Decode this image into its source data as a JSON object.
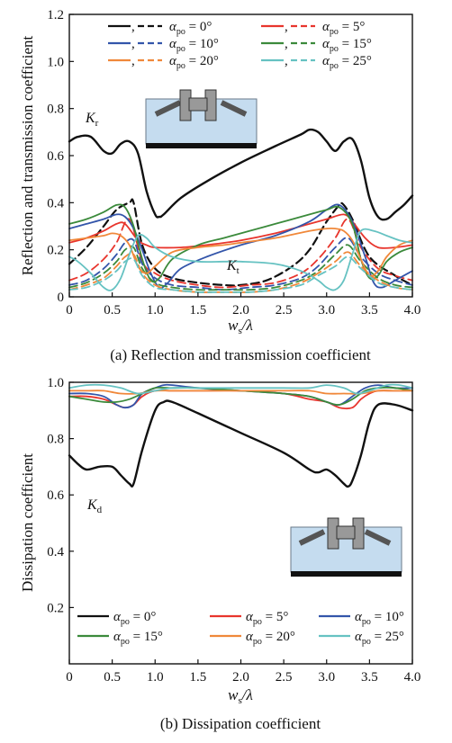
{
  "chart_data": [
    {
      "type": "line",
      "caption": "(a) Reflection and transmission coefficient",
      "xlabel": "w_s/λ",
      "xlabel_parts": {
        "w": "w",
        "s": "s",
        "rest": "/λ"
      },
      "ylabel": "Reflection and transmission coefficient",
      "xlim": [
        0,
        4.0
      ],
      "ylim": [
        0,
        1.2
      ],
      "xticks": [
        "0",
        "0.5",
        "1.0",
        "1.5",
        "2.0",
        "2.5",
        "3.0",
        "3.5",
        "4.0"
      ],
      "yticks": [
        "0",
        "0.2",
        "0.4",
        "0.6",
        "0.8",
        "1.0",
        "1.2"
      ],
      "grid": false,
      "legend_position": "top",
      "annotations": {
        "kr": {
          "main": "K",
          "sub": "r"
        },
        "kt": {
          "main": "K",
          "sub": "t"
        }
      },
      "legend": [
        {
          "sym": "α",
          "sub": "po",
          "val": " = 0°",
          "color": "#111111"
        },
        {
          "sym": "α",
          "sub": "po",
          "val": " = 5°",
          "color": "#e8352d"
        },
        {
          "sym": "α",
          "sub": "po",
          "val": " = 10°",
          "color": "#3355aa"
        },
        {
          "sym": "α",
          "sub": "po",
          "val": " = 15°",
          "color": "#3b8a3b"
        },
        {
          "sym": "α",
          "sub": "po",
          "val": " = 20°",
          "color": "#f0883a"
        },
        {
          "sym": "α",
          "sub": "po",
          "val": " = 25°",
          "color": "#66c2c2"
        }
      ],
      "legend_sep": ",",
      "series": [
        {
          "color": "#111111",
          "dash": false,
          "width": 2.4,
          "x": [
            0,
            0.1,
            0.25,
            0.4,
            0.5,
            0.6,
            0.7,
            0.8,
            0.9,
            1.0,
            1.05,
            1.1,
            1.3,
            1.6,
            2.0,
            2.4,
            2.7,
            2.8,
            2.9,
            3.0,
            3.1,
            3.2,
            3.3,
            3.4,
            3.5,
            3.6,
            3.7,
            3.8,
            3.9,
            4.0
          ],
          "y": [
            0.66,
            0.68,
            0.68,
            0.62,
            0.61,
            0.65,
            0.66,
            0.61,
            0.45,
            0.35,
            0.34,
            0.35,
            0.42,
            0.49,
            0.57,
            0.64,
            0.69,
            0.71,
            0.7,
            0.66,
            0.62,
            0.66,
            0.67,
            0.58,
            0.42,
            0.34,
            0.33,
            0.36,
            0.39,
            0.43
          ]
        },
        {
          "color": "#111111",
          "dash": true,
          "width": 2.2,
          "x": [
            0,
            0.2,
            0.4,
            0.55,
            0.7,
            0.75,
            0.85,
            1.0,
            1.2,
            1.5,
            1.8,
            2.0,
            2.3,
            2.6,
            2.8,
            3.0,
            3.15,
            3.2,
            3.3,
            3.5,
            3.8,
            4.0
          ],
          "y": [
            0.14,
            0.21,
            0.3,
            0.37,
            0.4,
            0.4,
            0.22,
            0.12,
            0.08,
            0.06,
            0.05,
            0.05,
            0.07,
            0.13,
            0.2,
            0.32,
            0.39,
            0.39,
            0.33,
            0.17,
            0.09,
            0.05
          ]
        },
        {
          "color": "#e8352d",
          "dash": false,
          "width": 1.8,
          "x": [
            0,
            0.2,
            0.4,
            0.55,
            0.65,
            0.8,
            0.9,
            1.0,
            1.3,
            1.6,
            2.0,
            2.4,
            2.8,
            3.0,
            3.2,
            3.3,
            3.45,
            3.6,
            3.8,
            4.0
          ],
          "y": [
            0.23,
            0.25,
            0.28,
            0.31,
            0.31,
            0.24,
            0.22,
            0.21,
            0.21,
            0.22,
            0.24,
            0.27,
            0.31,
            0.33,
            0.35,
            0.32,
            0.25,
            0.21,
            0.21,
            0.22
          ]
        },
        {
          "color": "#e8352d",
          "dash": true,
          "width": 1.8,
          "x": [
            0,
            0.2,
            0.4,
            0.55,
            0.7,
            0.85,
            1.0,
            1.2,
            1.5,
            1.8,
            2.1,
            2.4,
            2.7,
            2.9,
            3.1,
            3.25,
            3.4,
            3.6,
            3.8,
            4.0
          ],
          "y": [
            0.07,
            0.1,
            0.16,
            0.23,
            0.33,
            0.15,
            0.1,
            0.07,
            0.05,
            0.04,
            0.05,
            0.06,
            0.1,
            0.16,
            0.25,
            0.33,
            0.21,
            0.12,
            0.09,
            0.07
          ]
        },
        {
          "color": "#3355aa",
          "dash": false,
          "width": 1.8,
          "x": [
            0,
            0.2,
            0.4,
            0.55,
            0.65,
            0.75,
            0.85,
            0.95,
            1.05,
            1.15,
            1.3,
            1.6,
            2.0,
            2.4,
            2.8,
            3.0,
            3.15,
            3.3,
            3.45,
            3.55,
            3.65,
            3.8,
            4.0
          ],
          "y": [
            0.29,
            0.31,
            0.33,
            0.35,
            0.34,
            0.29,
            0.2,
            0.1,
            0.04,
            0.06,
            0.12,
            0.17,
            0.22,
            0.26,
            0.32,
            0.37,
            0.39,
            0.32,
            0.17,
            0.06,
            0.04,
            0.07,
            0.11
          ]
        },
        {
          "color": "#3355aa",
          "dash": true,
          "width": 1.8,
          "x": [
            0,
            0.2,
            0.4,
            0.55,
            0.65,
            0.75,
            0.85,
            1.0,
            1.2,
            1.5,
            1.8,
            2.1,
            2.4,
            2.7,
            2.9,
            3.1,
            3.25,
            3.4,
            3.6,
            3.8,
            4.0
          ],
          "y": [
            0.05,
            0.07,
            0.12,
            0.18,
            0.23,
            0.24,
            0.14,
            0.08,
            0.05,
            0.04,
            0.03,
            0.04,
            0.05,
            0.08,
            0.13,
            0.21,
            0.25,
            0.17,
            0.1,
            0.07,
            0.05
          ]
        },
        {
          "color": "#3b8a3b",
          "dash": false,
          "width": 1.8,
          "x": [
            0,
            0.2,
            0.4,
            0.55,
            0.65,
            0.75,
            0.85,
            0.95,
            1.05,
            1.2,
            1.5,
            1.8,
            2.0,
            2.4,
            2.8,
            3.0,
            3.15,
            3.3,
            3.4,
            3.5,
            3.6,
            3.7,
            3.85,
            4.0
          ],
          "y": [
            0.31,
            0.33,
            0.36,
            0.39,
            0.38,
            0.3,
            0.16,
            0.07,
            0.08,
            0.16,
            0.22,
            0.25,
            0.27,
            0.31,
            0.35,
            0.37,
            0.38,
            0.31,
            0.16,
            0.08,
            0.09,
            0.15,
            0.19,
            0.21
          ]
        },
        {
          "color": "#3b8a3b",
          "dash": true,
          "width": 1.8,
          "x": [
            0,
            0.2,
            0.4,
            0.55,
            0.65,
            0.75,
            0.85,
            1.0,
            1.2,
            1.5,
            1.8,
            2.1,
            2.4,
            2.7,
            2.9,
            3.1,
            3.25,
            3.4,
            3.6,
            3.8,
            4.0
          ],
          "y": [
            0.04,
            0.06,
            0.1,
            0.15,
            0.2,
            0.21,
            0.12,
            0.06,
            0.04,
            0.03,
            0.03,
            0.03,
            0.04,
            0.07,
            0.11,
            0.18,
            0.22,
            0.15,
            0.08,
            0.05,
            0.04
          ]
        },
        {
          "color": "#f0883a",
          "dash": false,
          "width": 1.8,
          "x": [
            0,
            0.2,
            0.4,
            0.5,
            0.6,
            0.7,
            0.8,
            0.9,
            1.0,
            1.2,
            1.5,
            1.8,
            2.0,
            2.4,
            2.8,
            3.0,
            3.1,
            3.2,
            3.3,
            3.4,
            3.5,
            3.6,
            3.7,
            3.85,
            4.0
          ],
          "y": [
            0.24,
            0.25,
            0.26,
            0.27,
            0.26,
            0.22,
            0.13,
            0.1,
            0.13,
            0.19,
            0.21,
            0.22,
            0.23,
            0.25,
            0.28,
            0.29,
            0.29,
            0.28,
            0.24,
            0.16,
            0.09,
            0.11,
            0.17,
            0.22,
            0.24
          ]
        },
        {
          "color": "#f0883a",
          "dash": true,
          "width": 1.8,
          "x": [
            0,
            0.2,
            0.4,
            0.55,
            0.65,
            0.75,
            0.85,
            1.0,
            1.2,
            1.5,
            1.8,
            2.1,
            2.4,
            2.7,
            2.9,
            3.1,
            3.25,
            3.4,
            3.6,
            3.8,
            4.0
          ],
          "y": [
            0.03,
            0.05,
            0.08,
            0.13,
            0.17,
            0.18,
            0.1,
            0.05,
            0.03,
            0.02,
            0.02,
            0.02,
            0.03,
            0.06,
            0.1,
            0.15,
            0.19,
            0.13,
            0.07,
            0.04,
            0.03
          ]
        },
        {
          "color": "#66c2c2",
          "dash": false,
          "width": 1.8,
          "x": [
            0,
            0.1,
            0.25,
            0.4,
            0.5,
            0.6,
            0.7,
            0.8,
            0.9,
            1.0,
            1.2,
            1.5,
            1.8,
            2.0,
            2.4,
            2.7,
            2.9,
            3.0,
            3.1,
            3.2,
            3.3,
            3.4,
            3.55,
            3.7,
            3.85,
            4.0
          ],
          "y": [
            0.17,
            0.15,
            0.1,
            0.04,
            0.03,
            0.08,
            0.18,
            0.26,
            0.25,
            0.21,
            0.17,
            0.15,
            0.15,
            0.15,
            0.14,
            0.11,
            0.07,
            0.04,
            0.03,
            0.07,
            0.18,
            0.28,
            0.28,
            0.26,
            0.24,
            0.23
          ]
        },
        {
          "color": "#66c2c2",
          "dash": true,
          "width": 1.8,
          "x": [
            0,
            0.2,
            0.4,
            0.55,
            0.65,
            0.75,
            0.85,
            1.0,
            1.2,
            1.5,
            1.8,
            2.1,
            2.4,
            2.7,
            2.9,
            3.1,
            3.25,
            3.4,
            3.6,
            3.8,
            4.0
          ],
          "y": [
            0.03,
            0.04,
            0.07,
            0.11,
            0.15,
            0.16,
            0.09,
            0.04,
            0.03,
            0.02,
            0.02,
            0.02,
            0.03,
            0.05,
            0.09,
            0.13,
            0.17,
            0.12,
            0.06,
            0.04,
            0.03
          ]
        }
      ]
    },
    {
      "type": "line",
      "caption": "(b) Dissipation coefficient",
      "xlabel": "w_s/λ",
      "xlabel_parts": {
        "w": "w",
        "s": "s",
        "rest": "/λ"
      },
      "ylabel": "Dissipation coefficient",
      "xlim": [
        0,
        4.0
      ],
      "ylim": [
        0,
        1.0
      ],
      "xticks": [
        "0",
        "0.5",
        "1.0",
        "1.5",
        "2.0",
        "2.5",
        "3.0",
        "3.5",
        "4.0"
      ],
      "yticks": [
        "0.2",
        "0.4",
        "0.6",
        "0.8",
        "1.0"
      ],
      "grid": false,
      "legend_position": "bottom",
      "annotations": {
        "kd": {
          "main": "K",
          "sub": "d"
        }
      },
      "legend": [
        {
          "sym": "α",
          "sub": "po",
          "val": " = 0°",
          "color": "#111111"
        },
        {
          "sym": "α",
          "sub": "po",
          "val": " = 5°",
          "color": "#e8352d"
        },
        {
          "sym": "α",
          "sub": "po",
          "val": " = 10°",
          "color": "#3355aa"
        },
        {
          "sym": "α",
          "sub": "po",
          "val": " = 15°",
          "color": "#3b8a3b"
        },
        {
          "sym": "α",
          "sub": "po",
          "val": " = 20°",
          "color": "#f0883a"
        },
        {
          "sym": "α",
          "sub": "po",
          "val": " = 25°",
          "color": "#66c2c2"
        }
      ],
      "series": [
        {
          "color": "#111111",
          "dash": false,
          "width": 2.4,
          "x": [
            0,
            0.1,
            0.2,
            0.35,
            0.5,
            0.6,
            0.7,
            0.75,
            0.85,
            1.0,
            1.1,
            1.2,
            1.5,
            2.0,
            2.5,
            2.8,
            2.9,
            3.0,
            3.1,
            3.2,
            3.25,
            3.3,
            3.4,
            3.5,
            3.6,
            3.8,
            4.0
          ],
          "y": [
            0.74,
            0.71,
            0.69,
            0.7,
            0.7,
            0.67,
            0.64,
            0.64,
            0.76,
            0.9,
            0.93,
            0.93,
            0.89,
            0.82,
            0.75,
            0.69,
            0.68,
            0.69,
            0.67,
            0.64,
            0.63,
            0.65,
            0.74,
            0.86,
            0.92,
            0.92,
            0.9
          ]
        },
        {
          "color": "#e8352d",
          "dash": false,
          "width": 1.8,
          "x": [
            0,
            0.2,
            0.4,
            0.55,
            0.65,
            0.75,
            0.85,
            1.0,
            1.2,
            1.5,
            2.0,
            2.5,
            2.8,
            3.0,
            3.15,
            3.3,
            3.4,
            3.5,
            3.6,
            3.8,
            4.0
          ],
          "y": [
            0.95,
            0.95,
            0.94,
            0.92,
            0.91,
            0.92,
            0.95,
            0.97,
            0.97,
            0.97,
            0.97,
            0.96,
            0.94,
            0.93,
            0.91,
            0.91,
            0.94,
            0.96,
            0.97,
            0.97,
            0.97
          ]
        },
        {
          "color": "#3355aa",
          "dash": false,
          "width": 1.8,
          "x": [
            0,
            0.2,
            0.4,
            0.55,
            0.65,
            0.75,
            0.85,
            1.0,
            1.1,
            1.2,
            1.5,
            2.0,
            2.5,
            2.8,
            3.0,
            3.15,
            3.3,
            3.45,
            3.6,
            3.8,
            4.0
          ],
          "y": [
            0.96,
            0.96,
            0.95,
            0.92,
            0.91,
            0.92,
            0.96,
            0.98,
            0.99,
            0.99,
            0.98,
            0.97,
            0.96,
            0.95,
            0.93,
            0.92,
            0.95,
            0.98,
            0.99,
            0.98,
            0.98
          ]
        },
        {
          "color": "#3b8a3b",
          "dash": false,
          "width": 1.8,
          "x": [
            0,
            0.2,
            0.4,
            0.55,
            0.7,
            0.85,
            1.0,
            1.2,
            1.5,
            2.0,
            2.5,
            2.8,
            3.0,
            3.15,
            3.3,
            3.45,
            3.6,
            3.8,
            4.0
          ],
          "y": [
            0.95,
            0.94,
            0.93,
            0.93,
            0.94,
            0.96,
            0.98,
            0.98,
            0.98,
            0.97,
            0.96,
            0.95,
            0.93,
            0.92,
            0.94,
            0.97,
            0.98,
            0.98,
            0.97
          ]
        },
        {
          "color": "#f0883a",
          "dash": false,
          "width": 1.8,
          "x": [
            0,
            0.2,
            0.4,
            0.6,
            0.8,
            1.0,
            1.2,
            1.5,
            2.0,
            2.5,
            2.8,
            3.0,
            3.2,
            3.4,
            3.6,
            3.8,
            4.0
          ],
          "y": [
            0.97,
            0.97,
            0.97,
            0.96,
            0.96,
            0.97,
            0.97,
            0.97,
            0.97,
            0.97,
            0.97,
            0.96,
            0.96,
            0.96,
            0.97,
            0.97,
            0.97
          ]
        },
        {
          "color": "#66c2c2",
          "dash": false,
          "width": 1.8,
          "x": [
            0,
            0.2,
            0.4,
            0.6,
            0.8,
            1.0,
            1.2,
            1.5,
            2.0,
            2.5,
            2.8,
            3.0,
            3.2,
            3.35,
            3.5,
            3.7,
            3.85,
            4.0
          ],
          "y": [
            0.98,
            0.99,
            0.99,
            0.98,
            0.96,
            0.97,
            0.98,
            0.98,
            0.98,
            0.98,
            0.98,
            0.99,
            0.98,
            0.96,
            0.97,
            0.99,
            0.99,
            0.98
          ]
        }
      ]
    }
  ]
}
